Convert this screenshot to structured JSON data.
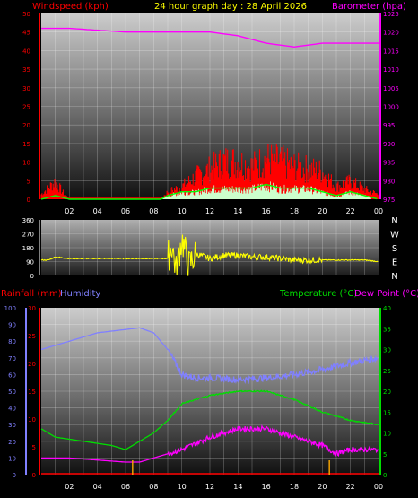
{
  "header": {
    "windspeed_label": "Windspeed (kph)",
    "title": "24 hour graph day : 28 April 2026",
    "barometer_label": "Barometer (hpa)"
  },
  "mid_header": {
    "rainfall_label": "Rainfall (mm)",
    "humidity_label": "Humidity",
    "temperature_label": "Temperature (°C)",
    "dewpoint_label": "Dew Point (°C)"
  },
  "colors": {
    "wind": "#ff0000",
    "gust": "#ff0000",
    "avg_wind": "#00ff00",
    "wind_fill": "#ccffcc",
    "barometer": "#ff00ff",
    "wind_dir": "#ffff00",
    "humidity": "#8080ff",
    "temperature": "#00dd00",
    "dewpoint": "#ff00ff",
    "rain": "#ff0000",
    "rain_rate": "#ffaa00",
    "title": "#ffff00"
  },
  "chart_data": [
    {
      "type": "line",
      "name": "wind-barometer",
      "x_ticks": [
        "02",
        "04",
        "06",
        "08",
        "10",
        "12",
        "14",
        "16",
        "18",
        "20",
        "22",
        "00"
      ],
      "left_axis": {
        "ylim": [
          0,
          50
        ],
        "ticks": [
          "0",
          "5",
          "10",
          "15",
          "20",
          "25",
          "30",
          "35",
          "40",
          "45",
          "50"
        ]
      },
      "right_axis": {
        "ylim": [
          975,
          1025
        ],
        "ticks": [
          "975",
          "980",
          "985",
          "990",
          "995",
          "1000",
          "1005",
          "1010",
          "1015",
          "1020",
          "1025"
        ]
      },
      "barometer": {
        "hours": [
          0,
          2,
          4,
          6,
          8,
          10,
          12,
          14,
          16,
          18,
          20,
          22,
          24
        ],
        "values": [
          1021,
          1021,
          1020.5,
          1020,
          1020,
          1020,
          1020,
          1019,
          1017,
          1016,
          1017,
          1017,
          1017
        ]
      },
      "gust_envelope": {
        "hours": [
          0,
          1,
          1.5,
          2,
          8.5,
          9,
          10,
          11,
          12,
          13,
          14,
          15,
          16,
          17,
          18,
          19,
          20,
          21,
          22,
          23,
          24
        ],
        "values": [
          2,
          7,
          3,
          0,
          0,
          3,
          5,
          9,
          12,
          15,
          15,
          13,
          16,
          15,
          13,
          12,
          11,
          5,
          7,
          4,
          2
        ]
      },
      "avg_wind": {
        "hours": [
          0,
          1,
          2,
          8.5,
          9,
          10,
          11,
          12,
          13,
          14,
          15,
          16,
          17,
          18,
          19,
          20,
          21,
          22,
          23,
          24
        ],
        "values": [
          0,
          1,
          0,
          0,
          1,
          2,
          2,
          3,
          3,
          3,
          3,
          4,
          3,
          3,
          3,
          2,
          1,
          2,
          1,
          0
        ]
      }
    },
    {
      "type": "line",
      "name": "wind-direction",
      "direction_labels": [
        "N",
        "W",
        "S",
        "E",
        "N"
      ],
      "left_axis": {
        "ylim": [
          0,
          360
        ],
        "ticks": [
          "0",
          "90",
          "180",
          "270",
          "360"
        ]
      },
      "direction": {
        "hours": [
          0,
          0.5,
          1,
          2,
          4,
          6,
          8,
          9,
          9.3,
          9.6,
          10,
          10.5,
          11,
          12,
          13,
          14,
          15,
          16,
          17,
          18,
          19,
          20,
          21,
          22,
          23,
          24
        ],
        "values": [
          100,
          100,
          120,
          110,
          110,
          110,
          110,
          110,
          200,
          30,
          240,
          60,
          140,
          110,
          130,
          130,
          120,
          120,
          110,
          100,
          100,
          100,
          100,
          100,
          100,
          90
        ]
      }
    },
    {
      "type": "line",
      "name": "temp-humidity-rain",
      "x_ticks": [
        "02",
        "04",
        "06",
        "08",
        "10",
        "12",
        "14",
        "16",
        "18",
        "20",
        "22",
        "00"
      ],
      "humidity_axis": {
        "ylim": [
          0,
          100
        ],
        "ticks": [
          "0",
          "10",
          "20",
          "30",
          "40",
          "50",
          "60",
          "70",
          "80",
          "90",
          "100"
        ]
      },
      "rain_axis": {
        "ylim": [
          0,
          30
        ],
        "ticks": [
          "0",
          "5",
          "10",
          "15",
          "20",
          "25",
          "30"
        ]
      },
      "temp_axis": {
        "ylim": [
          0,
          40
        ],
        "ticks": [
          "0",
          "5",
          "10",
          "15",
          "20",
          "25",
          "30",
          "35",
          "40"
        ]
      },
      "humidity": {
        "hours": [
          0,
          2,
          4,
          6,
          7,
          8,
          9,
          10,
          11,
          12,
          14,
          16,
          18,
          20,
          22,
          24
        ],
        "values": [
          75,
          80,
          85,
          87,
          88,
          85,
          75,
          60,
          58,
          58,
          57,
          58,
          60,
          63,
          67,
          70
        ]
      },
      "temperature": {
        "hours": [
          0,
          1,
          2,
          4,
          5,
          6,
          7,
          8,
          9,
          10,
          12,
          14,
          16,
          18,
          20,
          22,
          24
        ],
        "values": [
          11,
          9,
          8.5,
          7.5,
          7,
          6,
          8,
          10,
          13,
          17,
          19,
          20,
          20,
          18,
          15,
          13,
          12
        ]
      },
      "dew_point": {
        "hours": [
          0,
          2,
          4,
          6,
          7,
          8,
          9,
          10,
          12,
          14,
          16,
          18,
          20,
          21,
          22,
          24
        ],
        "values": [
          4,
          4,
          3.5,
          3,
          3,
          4,
          5,
          6,
          9,
          11,
          11,
          9,
          7,
          5,
          6,
          6
        ]
      },
      "rain_rate_spikes_hours": [
        6.5,
        20.5
      ],
      "rain_total": 0
    }
  ]
}
